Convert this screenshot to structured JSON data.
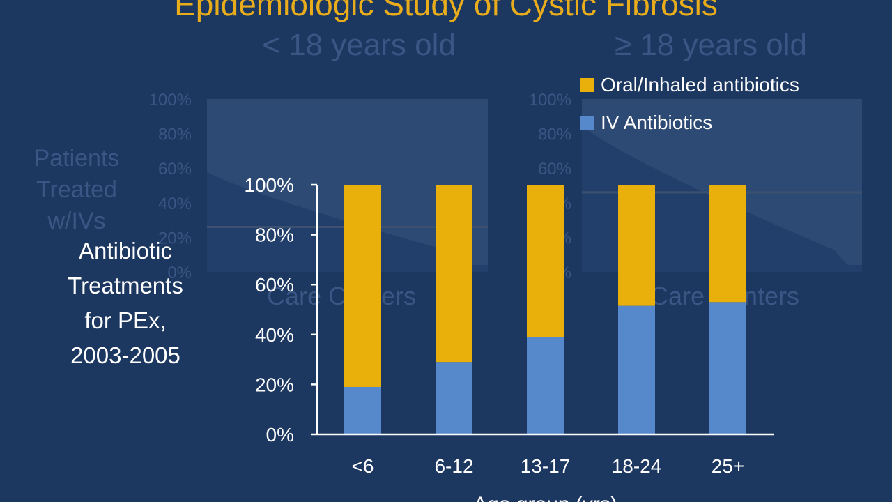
{
  "slide": {
    "title": "Epidemiologic Study of Cystic Fibrosis",
    "side_label": [
      "Antibiotic",
      "Treatments",
      "for PEx,",
      "2003-2005"
    ]
  },
  "background_panels": [
    {
      "subtitle": "< 18 years old",
      "ylabel": "Patients Treated w/IVs",
      "ticks": [
        "100%",
        "80%",
        "60%",
        "40%",
        "20%",
        "0%"
      ],
      "xlabel": "Care Centers"
    },
    {
      "subtitle": "≥ 18 years old",
      "ticks": [
        "100%",
        "80%",
        "60%",
        "40%",
        "20%",
        "0%"
      ],
      "xlabel": "Care Centers"
    }
  ],
  "colors": {
    "background": "#1c3760",
    "oral": "#e9b00b",
    "iv": "#5589cb",
    "axis": "#ffffff"
  },
  "chart_data": {
    "type": "bar",
    "stacked": true,
    "categories": [
      "<6",
      "6-12",
      "13-17",
      "18-24",
      "25+"
    ],
    "series": [
      {
        "name": "IV Antibiotics",
        "values": [
          19,
          29,
          39,
          51.5,
          53
        ],
        "color": "#5589cb"
      },
      {
        "name": "Oral/Inhaled antibiotics",
        "values": [
          81,
          71,
          61,
          48.5,
          47
        ],
        "color": "#e9b00b"
      }
    ],
    "y_ticks": [
      "0%",
      "20%",
      "40%",
      "60%",
      "80%",
      "100%"
    ],
    "ylim": [
      0,
      100
    ],
    "xlabel": "Age group (yrs)",
    "ylabel": "",
    "grid": false,
    "legend_position": "top-right"
  }
}
